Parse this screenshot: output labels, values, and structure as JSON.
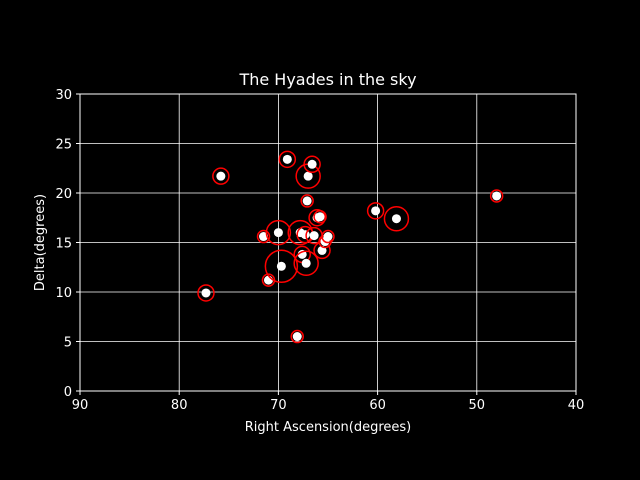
{
  "colors": {
    "background": "#000000",
    "foreground": "#ffffff",
    "ring": "#ff0000",
    "point": "#ffffff"
  },
  "chart_data": {
    "type": "scatter",
    "title": "The Hyades in the sky",
    "xlabel": "Right Ascension(degrees)",
    "ylabel": "Delta(degrees)",
    "xlim": [
      90,
      40
    ],
    "ylim": [
      0,
      30
    ],
    "x_inverted": true,
    "grid": true,
    "xticks": [
      90,
      80,
      70,
      60,
      50,
      40
    ],
    "yticks": [
      0,
      5,
      10,
      15,
      20,
      25,
      30
    ],
    "points": [
      {
        "ra": 77.3,
        "dec": 9.9,
        "mag": "medium"
      },
      {
        "ra": 75.8,
        "dec": 21.7,
        "mag": "medium"
      },
      {
        "ra": 71.5,
        "dec": 15.6,
        "mag": "small"
      },
      {
        "ra": 71.0,
        "dec": 11.2,
        "mag": "small"
      },
      {
        "ra": 70.0,
        "dec": 16.0,
        "mag": "large"
      },
      {
        "ra": 69.7,
        "dec": 12.6,
        "mag": "xlarge"
      },
      {
        "ra": 69.1,
        "dec": 23.4,
        "mag": "medium"
      },
      {
        "ra": 68.1,
        "dec": 5.5,
        "mag": "small"
      },
      {
        "ra": 67.8,
        "dec": 16.0,
        "mag": "large"
      },
      {
        "ra": 67.6,
        "dec": 13.8,
        "mag": "medium"
      },
      {
        "ra": 67.3,
        "dec": 15.8,
        "mag": "medium"
      },
      {
        "ra": 67.2,
        "dec": 12.9,
        "mag": "large"
      },
      {
        "ra": 67.1,
        "dec": 19.2,
        "mag": "small"
      },
      {
        "ra": 67.0,
        "dec": 21.7,
        "mag": "large"
      },
      {
        "ra": 66.6,
        "dec": 22.9,
        "mag": "medium"
      },
      {
        "ra": 66.4,
        "dec": 15.7,
        "mag": "medium"
      },
      {
        "ra": 66.1,
        "dec": 17.5,
        "mag": "medium"
      },
      {
        "ra": 65.8,
        "dec": 17.6,
        "mag": "small"
      },
      {
        "ra": 65.6,
        "dec": 14.2,
        "mag": "medium"
      },
      {
        "ra": 65.3,
        "dec": 15.1,
        "mag": "small"
      },
      {
        "ra": 65.0,
        "dec": 15.6,
        "mag": "small"
      },
      {
        "ra": 60.2,
        "dec": 18.2,
        "mag": "medium"
      },
      {
        "ra": 58.1,
        "dec": 17.4,
        "mag": "large"
      },
      {
        "ra": 48.0,
        "dec": 19.7,
        "mag": "small"
      }
    ]
  }
}
